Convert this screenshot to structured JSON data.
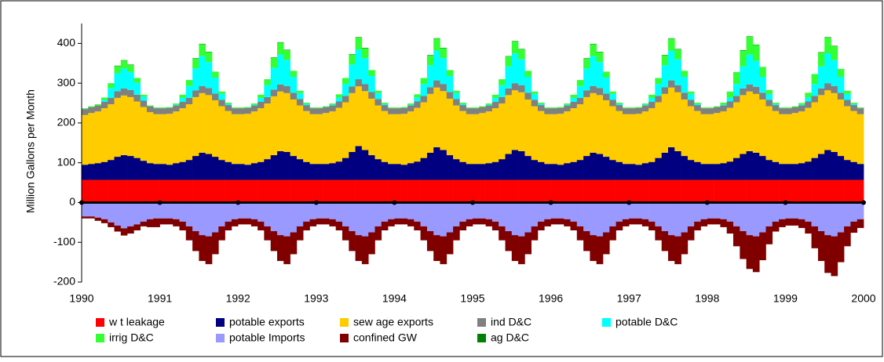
{
  "chart_data": {
    "type": "stacked-bar",
    "y_label": "Million Gallons per Month",
    "xlim": [
      1990,
      2000
    ],
    "xticks": [
      1990,
      1991,
      1992,
      1993,
      1994,
      1995,
      1996,
      1997,
      1998,
      1999,
      2000
    ],
    "ylim": [
      -200,
      450
    ],
    "yticks": [
      -200,
      -100,
      0,
      100,
      200,
      300,
      400
    ],
    "x": [
      1990,
      1990.083,
      1990.167,
      1990.25,
      1990.333,
      1990.417,
      1990.5,
      1990.583,
      1990.667,
      1990.75,
      1990.833,
      1990.917,
      1991,
      1991.083,
      1991.167,
      1991.25,
      1991.333,
      1991.417,
      1991.5,
      1991.583,
      1991.667,
      1991.75,
      1991.833,
      1991.917,
      1992,
      1992.083,
      1992.167,
      1992.25,
      1992.333,
      1992.417,
      1992.5,
      1992.583,
      1992.667,
      1992.75,
      1992.833,
      1992.917,
      1993,
      1993.083,
      1993.167,
      1993.25,
      1993.333,
      1993.417,
      1993.5,
      1993.583,
      1993.667,
      1993.75,
      1993.833,
      1993.917,
      1994,
      1994.083,
      1994.167,
      1994.25,
      1994.333,
      1994.417,
      1994.5,
      1994.583,
      1994.667,
      1994.75,
      1994.833,
      1994.917,
      1995,
      1995.083,
      1995.167,
      1995.25,
      1995.333,
      1995.417,
      1995.5,
      1995.583,
      1995.667,
      1995.75,
      1995.833,
      1995.917,
      1996,
      1996.083,
      1996.167,
      1996.25,
      1996.333,
      1996.417,
      1996.5,
      1996.583,
      1996.667,
      1996.75,
      1996.833,
      1996.917,
      1997,
      1997.083,
      1997.167,
      1997.25,
      1997.333,
      1997.417,
      1997.5,
      1997.583,
      1997.667,
      1997.75,
      1997.833,
      1997.917,
      1998,
      1998.083,
      1998.167,
      1998.25,
      1998.333,
      1998.417,
      1998.5,
      1998.583,
      1998.667,
      1998.75,
      1998.833,
      1998.917,
      1999,
      1999.083,
      1999.167,
      1999.25,
      1999.333,
      1999.417,
      1999.5,
      1999.583,
      1999.667,
      1999.75,
      1999.833,
      1999.917
    ],
    "series": [
      {
        "name": "w t leakage",
        "color": "#ff0000",
        "values": [
          57,
          57,
          57,
          57,
          57,
          57,
          57,
          57,
          57,
          57,
          57,
          57,
          57,
          57,
          57,
          57,
          57,
          57,
          57,
          57,
          57,
          57,
          57,
          57,
          57,
          57,
          57,
          57,
          57,
          57,
          57,
          57,
          57,
          57,
          57,
          57,
          57,
          57,
          57,
          57,
          57,
          57,
          57,
          57,
          57,
          57,
          57,
          57,
          57,
          57,
          57,
          57,
          57,
          57,
          57,
          57,
          57,
          57,
          57,
          57,
          57,
          57,
          57,
          57,
          57,
          57,
          57,
          57,
          57,
          57,
          57,
          57,
          57,
          57,
          57,
          57,
          57,
          57,
          57,
          57,
          57,
          57,
          57,
          57,
          57,
          57,
          57,
          57,
          57,
          57,
          57,
          57,
          57,
          57,
          57,
          57,
          57,
          57,
          57,
          57,
          57,
          57,
          57,
          57,
          57,
          57,
          57,
          57,
          57,
          57,
          57,
          57,
          57,
          57,
          57,
          57,
          57,
          57,
          57,
          57
        ]
      },
      {
        "name": "potable exports",
        "color": "#000080",
        "values": [
          38,
          40,
          42,
          45,
          50,
          58,
          62,
          60,
          55,
          48,
          42,
          40,
          40,
          38,
          42,
          45,
          50,
          60,
          68,
          65,
          58,
          50,
          45,
          40,
          40,
          38,
          42,
          45,
          52,
          62,
          72,
          70,
          60,
          52,
          45,
          40,
          40,
          40,
          42,
          46,
          55,
          70,
          85,
          75,
          62,
          52,
          45,
          40,
          40,
          38,
          42,
          46,
          55,
          68,
          82,
          75,
          62,
          52,
          45,
          40,
          40,
          40,
          42,
          45,
          52,
          65,
          75,
          72,
          60,
          50,
          45,
          40,
          40,
          38,
          42,
          45,
          50,
          60,
          68,
          65,
          58,
          50,
          45,
          40,
          40,
          38,
          42,
          45,
          55,
          68,
          82,
          72,
          60,
          50,
          45,
          40,
          40,
          40,
          42,
          46,
          55,
          65,
          72,
          68,
          60,
          50,
          45,
          40,
          40,
          40,
          42,
          46,
          55,
          65,
          75,
          70,
          60,
          50,
          45,
          40
        ]
      },
      {
        "name": "sew age exports",
        "color": "#ffcc00",
        "values": [
          125,
          128,
          130,
          135,
          140,
          148,
          150,
          148,
          142,
          135,
          128,
          125,
          125,
          128,
          130,
          135,
          140,
          148,
          150,
          148,
          142,
          135,
          128,
          125,
          125,
          128,
          130,
          135,
          140,
          148,
          150,
          148,
          142,
          135,
          128,
          125,
          125,
          128,
          130,
          135,
          140,
          148,
          150,
          148,
          142,
          135,
          128,
          125,
          125,
          128,
          130,
          135,
          140,
          148,
          150,
          148,
          142,
          135,
          128,
          125,
          125,
          128,
          130,
          135,
          140,
          148,
          150,
          148,
          142,
          135,
          128,
          125,
          125,
          128,
          130,
          135,
          140,
          148,
          150,
          148,
          142,
          135,
          128,
          125,
          125,
          128,
          130,
          135,
          140,
          148,
          150,
          148,
          142,
          135,
          128,
          125,
          125,
          128,
          130,
          135,
          140,
          148,
          150,
          148,
          142,
          135,
          128,
          125,
          125,
          128,
          130,
          135,
          140,
          148,
          150,
          148,
          142,
          135,
          128,
          125
        ]
      },
      {
        "name": "ind D&C",
        "color": "#808080",
        "values": [
          15,
          15,
          15,
          16,
          16,
          17,
          18,
          18,
          17,
          16,
          15,
          15,
          15,
          15,
          15,
          16,
          16,
          17,
          18,
          18,
          17,
          16,
          15,
          15,
          15,
          15,
          15,
          16,
          16,
          17,
          18,
          18,
          17,
          16,
          15,
          15,
          15,
          15,
          15,
          16,
          16,
          17,
          18,
          18,
          17,
          16,
          15,
          15,
          15,
          15,
          15,
          16,
          16,
          17,
          18,
          18,
          17,
          16,
          15,
          15,
          15,
          15,
          15,
          16,
          16,
          17,
          18,
          18,
          17,
          16,
          15,
          15,
          15,
          15,
          15,
          16,
          16,
          17,
          18,
          18,
          17,
          16,
          15,
          15,
          15,
          15,
          15,
          16,
          16,
          17,
          18,
          18,
          17,
          16,
          15,
          15,
          15,
          15,
          15,
          16,
          16,
          17,
          18,
          18,
          17,
          16,
          15,
          15,
          15,
          15,
          15,
          16,
          16,
          17,
          18,
          18,
          17,
          16,
          15,
          15
        ]
      },
      {
        "name": "potable D&C",
        "color": "#00ffff",
        "values": [
          0,
          0,
          0,
          5,
          25,
          45,
          50,
          45,
          30,
          10,
          0,
          0,
          0,
          0,
          2,
          10,
          30,
          55,
          75,
          65,
          40,
          15,
          3,
          0,
          0,
          0,
          2,
          10,
          30,
          55,
          75,
          65,
          40,
          15,
          3,
          0,
          0,
          0,
          2,
          10,
          30,
          55,
          75,
          65,
          40,
          15,
          3,
          0,
          0,
          0,
          2,
          10,
          30,
          55,
          75,
          65,
          40,
          15,
          3,
          0,
          0,
          0,
          2,
          10,
          30,
          55,
          75,
          65,
          40,
          15,
          3,
          0,
          0,
          0,
          2,
          10,
          30,
          55,
          75,
          65,
          40,
          15,
          3,
          0,
          0,
          0,
          2,
          10,
          30,
          55,
          75,
          65,
          40,
          15,
          3,
          0,
          0,
          0,
          2,
          10,
          30,
          55,
          75,
          65,
          40,
          15,
          3,
          0,
          0,
          0,
          2,
          10,
          30,
          55,
          75,
          65,
          40,
          15,
          3,
          0
        ]
      },
      {
        "name": "irrig D&C",
        "color": "#33ff33",
        "values": [
          2,
          2,
          3,
          6,
          12,
          18,
          20,
          18,
          12,
          5,
          2,
          2,
          2,
          2,
          3,
          8,
          15,
          25,
          30,
          25,
          15,
          6,
          3,
          2,
          2,
          2,
          3,
          8,
          15,
          25,
          30,
          25,
          15,
          6,
          3,
          2,
          2,
          2,
          3,
          8,
          15,
          25,
          30,
          25,
          15,
          6,
          3,
          2,
          2,
          2,
          3,
          8,
          15,
          25,
          30,
          25,
          15,
          6,
          3,
          2,
          2,
          2,
          3,
          8,
          15,
          25,
          30,
          25,
          15,
          6,
          3,
          2,
          2,
          2,
          3,
          8,
          15,
          25,
          30,
          25,
          15,
          6,
          3,
          2,
          2,
          2,
          3,
          8,
          15,
          25,
          30,
          25,
          15,
          6,
          3,
          2,
          2,
          2,
          5,
          15,
          30,
          40,
          45,
          40,
          25,
          10,
          3,
          2,
          2,
          2,
          4,
          12,
          25,
          35,
          40,
          35,
          20,
          8,
          3,
          2
        ]
      },
      {
        "name": "potable Imports",
        "color": "#9999ff",
        "values": [
          -35,
          -35,
          -38,
          -42,
          -50,
          -58,
          -65,
          -60,
          -55,
          -48,
          -42,
          -40,
          -40,
          -40,
          -42,
          -48,
          -60,
          -72,
          -82,
          -85,
          -75,
          -60,
          -48,
          -42,
          -40,
          -40,
          -42,
          -48,
          -60,
          -72,
          -82,
          -85,
          -75,
          -60,
          -48,
          -42,
          -40,
          -40,
          -42,
          -48,
          -60,
          -72,
          -82,
          -85,
          -75,
          -60,
          -48,
          -42,
          -40,
          -40,
          -42,
          -48,
          -60,
          -72,
          -82,
          -85,
          -75,
          -60,
          -48,
          -42,
          -40,
          -40,
          -42,
          -48,
          -60,
          -72,
          -82,
          -85,
          -75,
          -60,
          -48,
          -42,
          -40,
          -40,
          -42,
          -48,
          -60,
          -72,
          -82,
          -85,
          -75,
          -60,
          -48,
          -42,
          -40,
          -40,
          -42,
          -48,
          -60,
          -72,
          -82,
          -85,
          -75,
          -60,
          -48,
          -42,
          -40,
          -40,
          -42,
          -48,
          -60,
          -72,
          -82,
          -85,
          -75,
          -60,
          -48,
          -42,
          -40,
          -40,
          -42,
          -48,
          -60,
          -72,
          -82,
          -85,
          -75,
          -60,
          -48,
          -42
        ]
      },
      {
        "name": "confined GW",
        "color": "#800000",
        "values": [
          -5,
          -5,
          -8,
          -10,
          -12,
          -15,
          -18,
          -18,
          -15,
          -12,
          -20,
          -22,
          -15,
          -15,
          -18,
          -22,
          -35,
          -50,
          -65,
          -70,
          -55,
          -35,
          -22,
          -18,
          -15,
          -15,
          -18,
          -22,
          -35,
          -50,
          -65,
          -70,
          -55,
          -35,
          -22,
          -18,
          -15,
          -15,
          -18,
          -22,
          -35,
          -50,
          -65,
          -70,
          -55,
          -35,
          -22,
          -18,
          -15,
          -15,
          -18,
          -22,
          -35,
          -50,
          -65,
          -70,
          -55,
          -35,
          -22,
          -18,
          -15,
          -15,
          -18,
          -22,
          -35,
          -50,
          -65,
          -70,
          -55,
          -35,
          -22,
          -18,
          -15,
          -15,
          -18,
          -22,
          -35,
          -50,
          -65,
          -70,
          -55,
          -35,
          -22,
          -18,
          -15,
          -15,
          -18,
          -22,
          -35,
          -50,
          -65,
          -70,
          -55,
          -35,
          -22,
          -18,
          -15,
          -15,
          -20,
          -30,
          -50,
          -70,
          -85,
          -90,
          -70,
          -45,
          -25,
          -20,
          -18,
          -18,
          -22,
          -30,
          -55,
          -75,
          -95,
          -100,
          -75,
          -50,
          -28,
          -22
        ]
      },
      {
        "name": "ag D&C",
        "color": "#008000",
        "values": [
          0,
          0,
          0,
          0,
          0,
          1,
          1,
          1,
          0,
          0,
          0,
          0,
          0,
          0,
          0,
          0,
          0,
          1,
          1,
          1,
          0,
          0,
          0,
          0,
          0,
          0,
          0,
          0,
          0,
          1,
          1,
          1,
          0,
          0,
          0,
          0,
          0,
          0,
          0,
          0,
          0,
          1,
          1,
          1,
          0,
          0,
          0,
          0,
          0,
          0,
          0,
          0,
          0,
          1,
          1,
          1,
          0,
          0,
          0,
          0,
          0,
          0,
          0,
          0,
          0,
          1,
          1,
          1,
          0,
          0,
          0,
          0,
          0,
          0,
          0,
          0,
          0,
          1,
          1,
          1,
          0,
          0,
          0,
          0,
          0,
          0,
          0,
          0,
          0,
          1,
          1,
          1,
          0,
          0,
          0,
          0,
          0,
          0,
          0,
          0,
          0,
          1,
          1,
          1,
          0,
          0,
          0,
          0,
          0,
          0,
          0,
          0,
          0,
          1,
          1,
          1,
          0,
          0,
          0,
          0
        ]
      }
    ]
  }
}
